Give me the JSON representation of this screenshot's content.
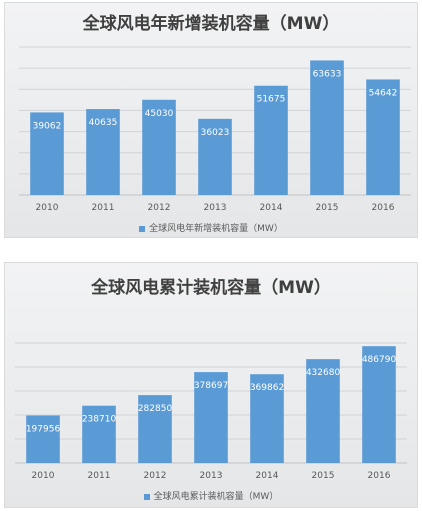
{
  "chart_data": [
    {
      "type": "bar",
      "title": "全球风电年新增装机容量（MW）",
      "categories": [
        "2010",
        "2011",
        "2012",
        "2013",
        "2014",
        "2015",
        "2016"
      ],
      "series": [
        {
          "name": "全球风电年新增装机容量（MW）",
          "values": [
            39062,
            40635,
            45030,
            36023,
            51675,
            63633,
            54642
          ]
        }
      ],
      "ylim": [
        0,
        70000
      ],
      "grid": true,
      "legend": "bottom",
      "bar_color": "#5b9bd5"
    },
    {
      "type": "bar",
      "title": "全球风电累计装机容量（MW）",
      "categories": [
        "2010",
        "2011",
        "2012",
        "2013",
        "2014",
        "2015",
        "2016"
      ],
      "series": [
        {
          "name": "全球风电累计装机容量（MW）",
          "values": [
            197956,
            238710,
            282850,
            378697,
            369862,
            432680,
            486790
          ]
        }
      ],
      "ylim": [
        0,
        500000
      ],
      "grid": true,
      "legend": "bottom",
      "bar_color": "#5b9bd5"
    }
  ]
}
